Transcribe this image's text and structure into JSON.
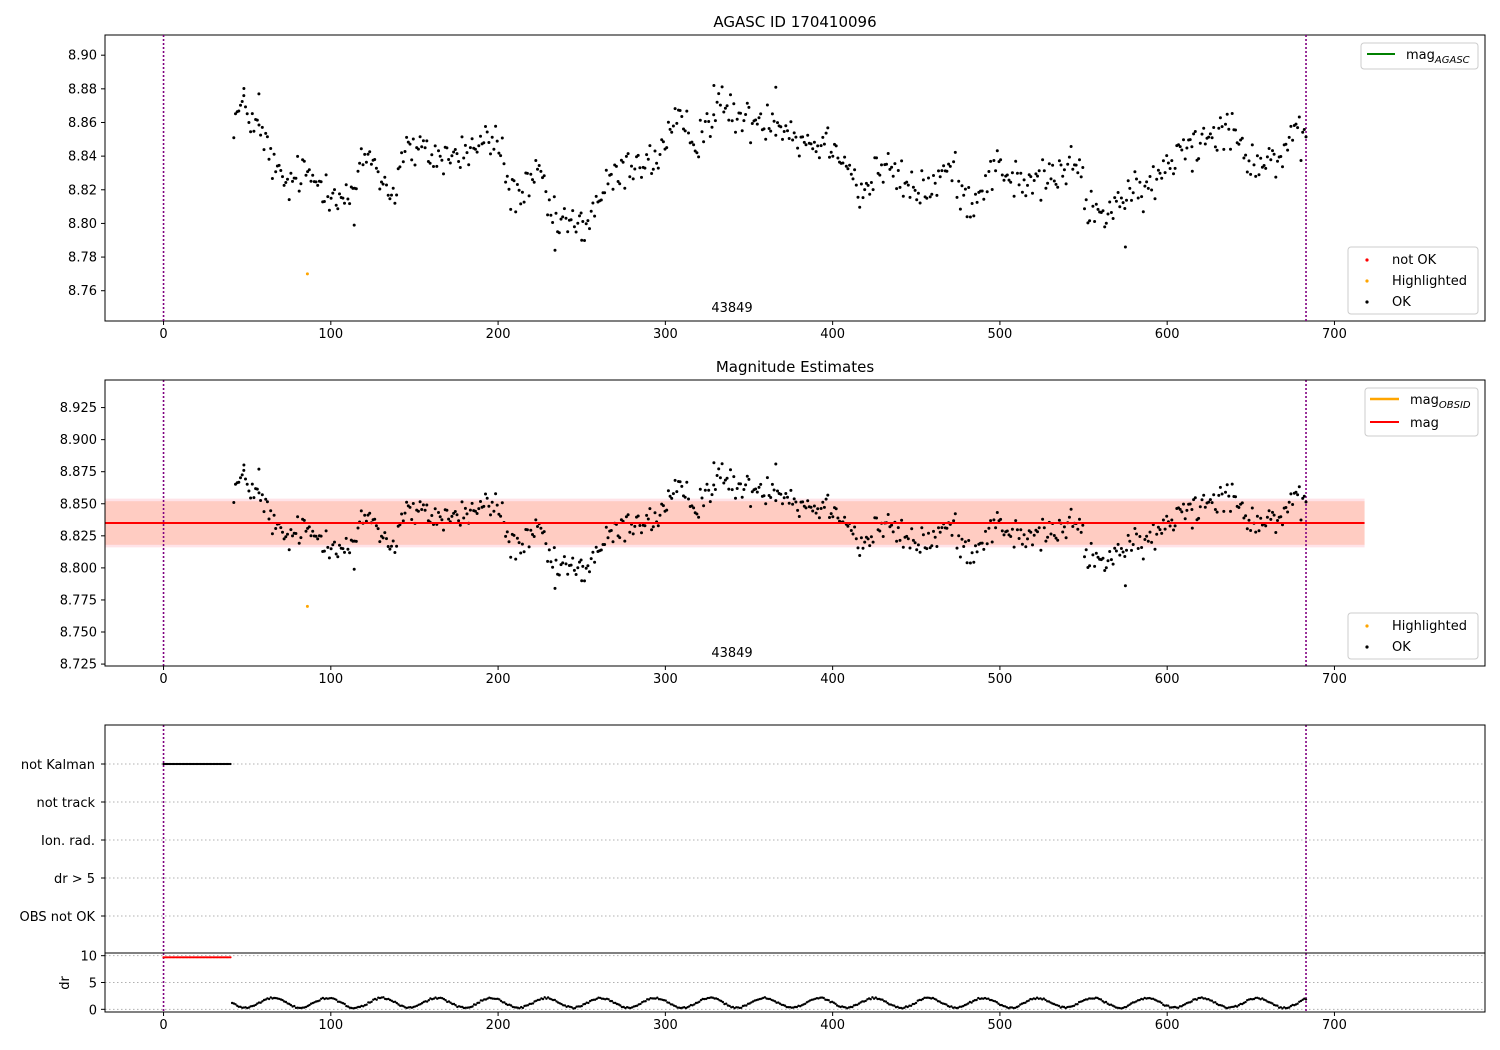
{
  "chart_data": [
    {
      "type": "scatter",
      "title": "AGASC ID 170410096",
      "annotation": "43849",
      "xlim": [
        -35,
        790
      ],
      "ylim": [
        8.742,
        8.912
      ],
      "xticks": [
        0,
        100,
        200,
        300,
        400,
        500,
        600,
        700
      ],
      "yticks": [
        8.76,
        8.78,
        8.8,
        8.82,
        8.84,
        8.86,
        8.88,
        8.9
      ],
      "ytick_decimals": 2,
      "vlines": [
        0,
        683
      ],
      "grid": false,
      "legend_upper": {
        "placement": "upper right",
        "entries": [
          {
            "label": "mag",
            "subscript": "AGASC",
            "color": "#008000",
            "kind": "line"
          }
        ]
      },
      "legend_lower": {
        "placement": "lower right",
        "entries": [
          {
            "label": "not OK",
            "color": "#ff0000",
            "kind": "point"
          },
          {
            "label": "Highlighted",
            "color": "#ffa500",
            "kind": "point"
          },
          {
            "label": "OK",
            "color": "#000000",
            "kind": "point"
          }
        ]
      },
      "series": [
        {
          "name": "OK",
          "color": "#000000",
          "x_range": [
            42,
            683
          ],
          "n_points": 640,
          "y_nodes": [
            [
              42,
              8.862
            ],
            [
              48,
              8.87
            ],
            [
              55,
              8.858
            ],
            [
              62,
              8.845
            ],
            [
              68,
              8.828
            ],
            [
              75,
              8.822
            ],
            [
              82,
              8.83
            ],
            [
              90,
              8.826
            ],
            [
              96,
              8.823
            ],
            [
              102,
              8.82
            ],
            [
              108,
              8.814
            ],
            [
              114,
              8.818
            ],
            [
              120,
              8.84
            ],
            [
              126,
              8.838
            ],
            [
              132,
              8.822
            ],
            [
              138,
              8.818
            ],
            [
              144,
              8.846
            ],
            [
              150,
              8.842
            ],
            [
              158,
              8.842
            ],
            [
              165,
              8.839
            ],
            [
              172,
              8.84
            ],
            [
              180,
              8.842
            ],
            [
              188,
              8.846
            ],
            [
              196,
              8.85
            ],
            [
              202,
              8.845
            ],
            [
              206,
              8.82
            ],
            [
              212,
              8.817
            ],
            [
              218,
              8.82
            ],
            [
              226,
              8.83
            ],
            [
              232,
              8.8
            ],
            [
              240,
              8.802
            ],
            [
              248,
              8.797
            ],
            [
              254,
              8.802
            ],
            [
              260,
              8.815
            ],
            [
              268,
              8.825
            ],
            [
              276,
              8.832
            ],
            [
              284,
              8.838
            ],
            [
              292,
              8.835
            ],
            [
              300,
              8.848
            ],
            [
              306,
              8.858
            ],
            [
              312,
              8.856
            ],
            [
              318,
              8.85
            ],
            [
              324,
              8.858
            ],
            [
              332,
              8.87
            ],
            [
              340,
              8.866
            ],
            [
              348,
              8.86
            ],
            [
              356,
              8.862
            ],
            [
              364,
              8.863
            ],
            [
              372,
              8.858
            ],
            [
              380,
              8.85
            ],
            [
              388,
              8.848
            ],
            [
              396,
              8.848
            ],
            [
              404,
              8.846
            ],
            [
              410,
              8.834
            ],
            [
              416,
              8.818
            ],
            [
              422,
              8.822
            ],
            [
              428,
              8.834
            ],
            [
              436,
              8.83
            ],
            [
              444,
              8.822
            ],
            [
              452,
              8.82
            ],
            [
              460,
              8.822
            ],
            [
              466,
              8.83
            ],
            [
              472,
              8.832
            ],
            [
              478,
              8.815
            ],
            [
              486,
              8.816
            ],
            [
              494,
              8.83
            ],
            [
              500,
              8.835
            ],
            [
              506,
              8.828
            ],
            [
              514,
              8.822
            ],
            [
              522,
              8.825
            ],
            [
              530,
              8.828
            ],
            [
              538,
              8.83
            ],
            [
              546,
              8.836
            ],
            [
              552,
              8.812
            ],
            [
              558,
              8.805
            ],
            [
              564,
              8.806
            ],
            [
              570,
              8.815
            ],
            [
              576,
              8.812
            ],
            [
              582,
              8.818
            ],
            [
              590,
              8.822
            ],
            [
              596,
              8.828
            ],
            [
              604,
              8.838
            ],
            [
              610,
              8.85
            ],
            [
              618,
              8.848
            ],
            [
              626,
              8.856
            ],
            [
              634,
              8.858
            ],
            [
              642,
              8.855
            ],
            [
              648,
              8.84
            ],
            [
              656,
              8.836
            ],
            [
              664,
              8.838
            ],
            [
              672,
              8.845
            ],
            [
              678,
              8.85
            ],
            [
              683,
              8.846
            ]
          ],
          "outliers": [
            [
              48,
              8.876
            ],
            [
              57,
              8.877
            ],
            [
              329,
              8.882
            ],
            [
              366,
              8.881
            ],
            [
              114,
              8.799
            ],
            [
              234,
              8.784
            ],
            [
              250,
              8.79
            ],
            [
              575,
              8.786
            ],
            [
              615,
              8.831
            ]
          ]
        },
        {
          "name": "Highlighted",
          "color": "#ffa500",
          "points": [
            [
              86,
              8.77
            ]
          ]
        }
      ]
    },
    {
      "type": "scatter",
      "title": "Magnitude Estimates",
      "annotation": "43849",
      "xlim": [
        -35,
        790
      ],
      "ylim": [
        8.7235,
        8.9465
      ],
      "xticks": [
        0,
        100,
        200,
        300,
        400,
        500,
        600,
        700
      ],
      "yticks": [
        8.725,
        8.75,
        8.775,
        8.8,
        8.825,
        8.85,
        8.875,
        8.9,
        8.925
      ],
      "ytick_decimals": 3,
      "vlines": [
        0,
        683
      ],
      "grid": false,
      "bands": [
        {
          "x": [
            -35,
            718
          ],
          "y": [
            8.816,
            8.854
          ],
          "color": "#ffc0cb",
          "opacity": 0.45
        },
        {
          "x": [
            -35,
            718
          ],
          "y": [
            8.818,
            8.852
          ],
          "color": "#ffa07a",
          "opacity": 0.35
        }
      ],
      "hlines": [
        {
          "y": 8.835,
          "x": [
            -35,
            718
          ],
          "color": "#ff0000",
          "width": 2
        }
      ],
      "legend_upper": {
        "placement": "upper right",
        "entries": [
          {
            "label": "mag",
            "subscript": "OBSID",
            "color": "#ffa500",
            "kind": "line"
          },
          {
            "label": "mag",
            "subscript": "",
            "color": "#ff0000",
            "kind": "line"
          }
        ]
      },
      "legend_lower": {
        "placement": "lower right",
        "entries": [
          {
            "label": "Highlighted",
            "color": "#ffa500",
            "kind": "point"
          },
          {
            "label": "OK",
            "color": "#000000",
            "kind": "point"
          }
        ]
      },
      "series": [
        {
          "name": "OK",
          "ref": 0
        },
        {
          "name": "Highlighted",
          "color": "#ffa500",
          "points": [
            [
              86,
              8.77
            ]
          ]
        }
      ]
    },
    {
      "type": "scatter",
      "title": "",
      "xlim": [
        -35,
        790
      ],
      "vlines": [
        0,
        683
      ],
      "flags": {
        "labels": [
          "not Kalman",
          "not track",
          "Ion. rad.",
          "dr > 5",
          "OBS not OK"
        ],
        "grid": "dotted",
        "not_kalman": {
          "x_range": [
            0,
            40
          ],
          "n_points": 48,
          "color": "#000000"
        }
      },
      "dr": {
        "ylabel": "dr",
        "yticks": [
          0,
          5,
          10
        ],
        "ylim": [
          -0.5,
          10.5
        ],
        "xticks": [
          0,
          100,
          200,
          300,
          400,
          500,
          600,
          700
        ],
        "flagged": {
          "x_range": [
            0,
            40
          ],
          "value": 9.7,
          "n_points": 48,
          "color": "#ff0000"
        },
        "ok": {
          "x_range": [
            41,
            683
          ],
          "n_points": 640,
          "color": "#000000"
        }
      }
    }
  ]
}
